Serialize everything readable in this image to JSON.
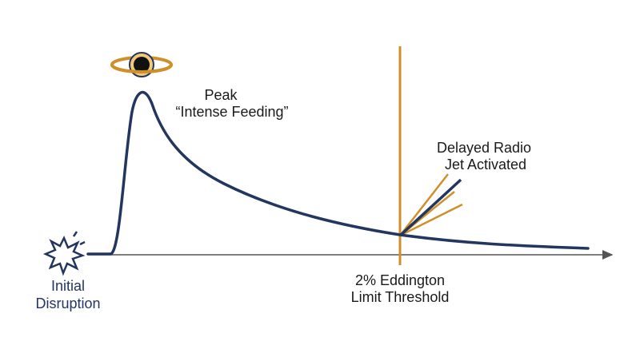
{
  "annotations": {
    "peak": {
      "lines": [
        "Peak",
        "“Intense Feeding”"
      ]
    },
    "jet": {
      "lines": [
        "Delayed Radio",
        "Jet Activated"
      ]
    },
    "threshold": {
      "lines": [
        "2% Eddington",
        "Limit Threshold"
      ]
    },
    "start": {
      "lines": [
        "Initial",
        "Disruption"
      ]
    }
  }
}
